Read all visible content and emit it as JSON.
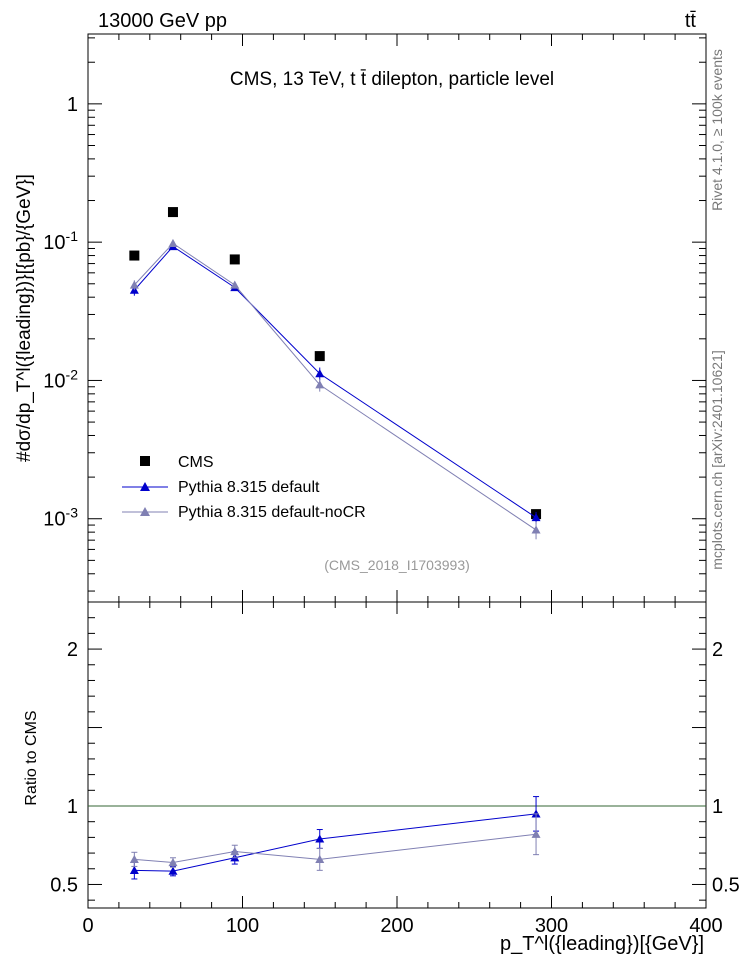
{
  "header": {
    "left": "13000 GeV pp",
    "right": "tt̄"
  },
  "side_labels": {
    "rivet": "Rivet 4.1.0, ≥ 100k events",
    "mcplots": "mcplots.cern.ch [arXiv:2401.10621]"
  },
  "chart_data": [
    {
      "type": "scatter",
      "panel": "main",
      "title": "CMS, 13 TeV, t t̄ dilepton, particle level",
      "watermark": "(CMS_2018_I1703993)",
      "ylabel": "#dσ/dp_T^l({leading})}[{pb}/{GeV}]",
      "yscale": "log",
      "xlim": [
        0,
        400
      ],
      "ylim": [
        0.00025,
        3.2
      ],
      "y_ticks": [
        {
          "value": 0.001,
          "label": "10^-3"
        },
        {
          "value": 0.01,
          "label": "10^-2"
        },
        {
          "value": 0.1,
          "label": "10^-1"
        },
        {
          "value": 1,
          "label": "1"
        }
      ],
      "x": [
        30,
        55,
        95,
        150,
        290
      ],
      "series": [
        {
          "name": "CMS",
          "style": "square-markers",
          "color": "#000000",
          "values": [
            0.08,
            0.165,
            0.075,
            0.015,
            0.00108
          ],
          "errors": [
            0.003,
            0.005,
            0.003,
            0.0008,
            7e-05
          ]
        },
        {
          "name": "Pythia 8.315 default",
          "style": "line-triangles",
          "color": "#0000cc",
          "values": [
            0.045,
            0.093,
            0.047,
            0.0112,
            0.00102
          ],
          "errors": [
            0.004,
            0.004,
            0.002,
            0.0012,
            0.0001
          ]
        },
        {
          "name": "Pythia 8.315 default-noCR",
          "style": "line-triangles",
          "color": "#8080b3",
          "values": [
            0.049,
            0.098,
            0.049,
            0.0093,
            0.00083
          ],
          "errors": [
            0.004,
            0.004,
            0.002,
            0.001,
            0.00012
          ]
        }
      ]
    },
    {
      "type": "line",
      "panel": "ratio",
      "ylabel": "Ratio to CMS",
      "xlabel": "p_T^l({leading})[{GeV}]",
      "xlim": [
        0,
        400
      ],
      "ylim": [
        0.35,
        2.3
      ],
      "x_ticks": [
        0,
        100,
        200,
        300,
        400
      ],
      "y_ticks": [
        0.5,
        1,
        2
      ],
      "reference": 1.0,
      "reference_color": "#336633",
      "x": [
        30,
        55,
        95,
        150,
        290
      ],
      "series": [
        {
          "name": "Pythia 8.315 default",
          "color": "#0000cc",
          "values": [
            0.59,
            0.585,
            0.67,
            0.79,
            0.95
          ],
          "errors": [
            0.055,
            0.03,
            0.04,
            0.06,
            0.11
          ]
        },
        {
          "name": "Pythia 8.315 default-noCR",
          "color": "#8080b3",
          "values": [
            0.66,
            0.64,
            0.71,
            0.66,
            0.82
          ],
          "errors": [
            0.045,
            0.03,
            0.04,
            0.07,
            0.13
          ]
        }
      ]
    }
  ]
}
